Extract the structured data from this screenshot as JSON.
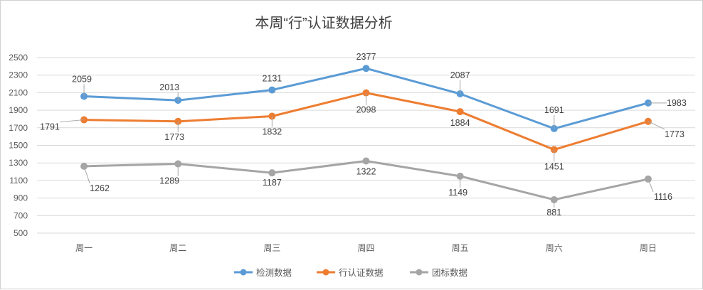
{
  "chart_data": {
    "type": "line",
    "title": "本周“行”认证数据分析",
    "categories": [
      "周一",
      "周二",
      "周三",
      "周四",
      "周五",
      "周六",
      "周日"
    ],
    "series": [
      {
        "name": "检测数据",
        "color": "#5B9BD5",
        "values": [
          2059,
          2013,
          2131,
          2377,
          2087,
          1691,
          1983
        ]
      },
      {
        "name": "行认证数据",
        "color": "#ED7D31",
        "values": [
          1791,
          1773,
          1832,
          2098,
          1884,
          1451,
          1773
        ]
      },
      {
        "name": "团标数据",
        "color": "#A5A5A5",
        "values": [
          1262,
          1289,
          1187,
          1322,
          1149,
          881,
          1116
        ]
      }
    ],
    "ylim": [
      500,
      2500
    ],
    "yticks": [
      500,
      700,
      900,
      1100,
      1300,
      1500,
      1700,
      1900,
      2100,
      2300,
      2500
    ],
    "grid": true,
    "legend": "bottom"
  }
}
